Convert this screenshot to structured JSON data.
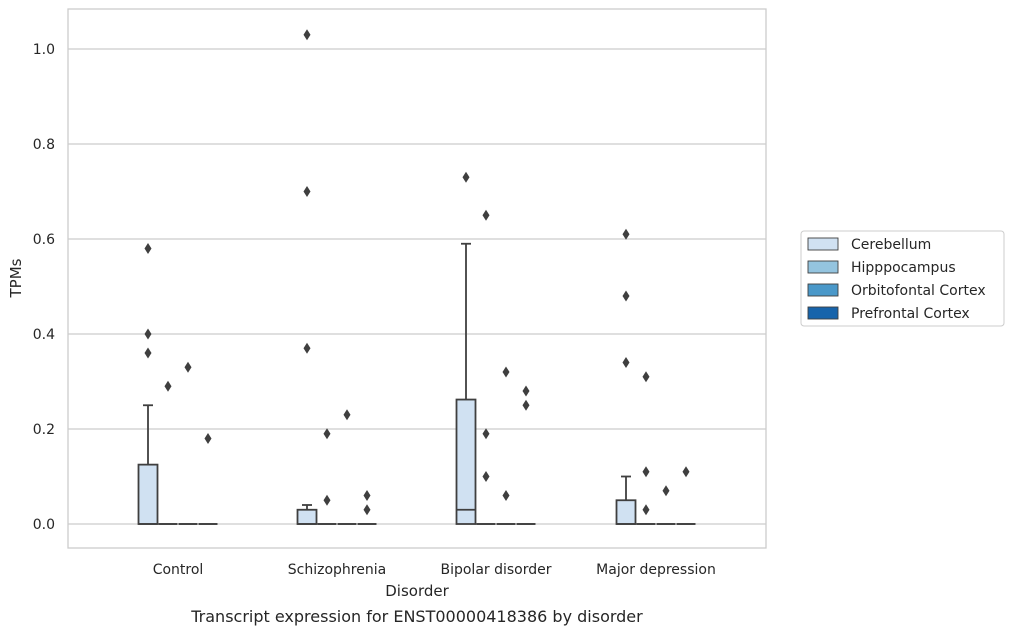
{
  "chart_data": {
    "type": "box",
    "caption": "Transcript expression for ENST00000418386 by disorder",
    "xlabel": "Disorder",
    "ylabel": "TPMs",
    "ylim": [
      -0.05,
      1.08
    ],
    "yticks": [
      0.0,
      0.2,
      0.4,
      0.6,
      0.8,
      1.0
    ],
    "grid": true,
    "legend_position": "right",
    "categories": [
      "Control",
      "Schizophrenia",
      "Bipolar disorder",
      "Major depression"
    ],
    "series": [
      {
        "name": "Cerebellum",
        "color": "#d0e1f2",
        "boxes": [
          {
            "q1": 0.0,
            "median": 0.0,
            "q3": 0.125,
            "whisker_low": 0.0,
            "whisker_high": 0.25,
            "outliers": [
              0.58,
              0.4,
              0.36
            ]
          },
          {
            "q1": 0.0,
            "median": 0.0,
            "q3": 0.03,
            "whisker_low": 0.0,
            "whisker_high": 0.04,
            "outliers": [
              1.03,
              0.7,
              0.37
            ]
          },
          {
            "q1": 0.0,
            "median": 0.03,
            "q3": 0.262,
            "whisker_low": 0.0,
            "whisker_high": 0.59,
            "outliers": [
              0.73
            ]
          },
          {
            "q1": 0.0,
            "median": 0.0,
            "q3": 0.05,
            "whisker_low": 0.0,
            "whisker_high": 0.1,
            "outliers": [
              0.61,
              0.48,
              0.34
            ]
          }
        ]
      },
      {
        "name": "Hipppocampus",
        "color": "#94c4df",
        "boxes": [
          {
            "q1": 0.0,
            "median": 0.0,
            "q3": 0.0,
            "whisker_low": 0.0,
            "whisker_high": 0.0,
            "outliers": [
              0.29
            ]
          },
          {
            "q1": 0.0,
            "median": 0.0,
            "q3": 0.0,
            "whisker_low": 0.0,
            "whisker_high": 0.0,
            "outliers": [
              0.19,
              0.05
            ]
          },
          {
            "q1": 0.0,
            "median": 0.0,
            "q3": 0.0,
            "whisker_low": 0.0,
            "whisker_high": 0.0,
            "outliers": [
              0.65,
              0.19,
              0.1
            ]
          },
          {
            "q1": 0.0,
            "median": 0.0,
            "q3": 0.0,
            "whisker_low": 0.0,
            "whisker_high": 0.0,
            "outliers": [
              0.31,
              0.11,
              0.03
            ]
          }
        ]
      },
      {
        "name": "Orbitofontal Cortex",
        "color": "#4a98c9",
        "boxes": [
          {
            "q1": 0.0,
            "median": 0.0,
            "q3": 0.0,
            "whisker_low": 0.0,
            "whisker_high": 0.0,
            "outliers": [
              0.33
            ]
          },
          {
            "q1": 0.0,
            "median": 0.0,
            "q3": 0.0,
            "whisker_low": 0.0,
            "whisker_high": 0.0,
            "outliers": [
              0.23
            ]
          },
          {
            "q1": 0.0,
            "median": 0.0,
            "q3": 0.0,
            "whisker_low": 0.0,
            "whisker_high": 0.0,
            "outliers": [
              0.32,
              0.06
            ]
          },
          {
            "q1": 0.0,
            "median": 0.0,
            "q3": 0.0,
            "whisker_low": 0.0,
            "whisker_high": 0.0,
            "outliers": [
              0.07
            ]
          }
        ]
      },
      {
        "name": "Prefrontal Cortex",
        "color": "#1764ab",
        "boxes": [
          {
            "q1": 0.0,
            "median": 0.0,
            "q3": 0.0,
            "whisker_low": 0.0,
            "whisker_high": 0.0,
            "outliers": [
              0.18
            ]
          },
          {
            "q1": 0.0,
            "median": 0.0,
            "q3": 0.0,
            "whisker_low": 0.0,
            "whisker_high": 0.0,
            "outliers": [
              0.06,
              0.03
            ]
          },
          {
            "q1": 0.0,
            "median": 0.0,
            "q3": 0.0,
            "whisker_low": 0.0,
            "whisker_high": 0.0,
            "outliers": [
              0.28,
              0.25
            ]
          },
          {
            "q1": 0.0,
            "median": 0.0,
            "q3": 0.0,
            "whisker_low": 0.0,
            "whisker_high": 0.0,
            "outliers": [
              0.11
            ]
          }
        ]
      }
    ]
  },
  "colors": {
    "grid": "#cccccc",
    "frame": "#cccccc",
    "box_edge": "#3f3f3f",
    "background": "#ffffff"
  }
}
